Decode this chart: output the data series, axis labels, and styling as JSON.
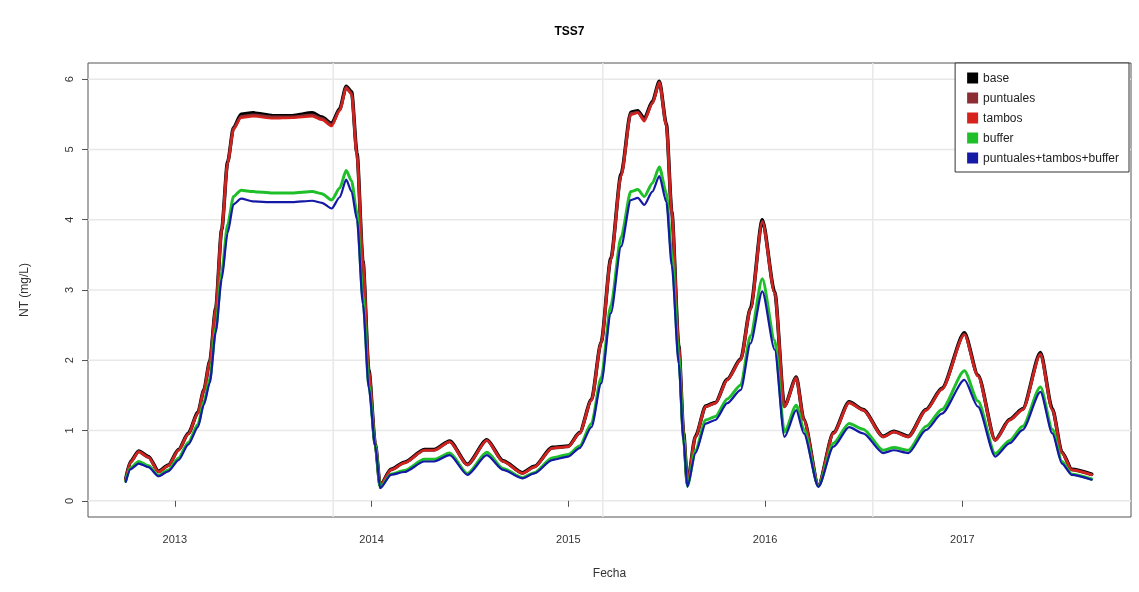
{
  "chart_data": {
    "type": "line",
    "title": "TSS7",
    "xlabel": "Fecha",
    "ylabel": "NT (mg/L)",
    "x": [
      "2012-10-02",
      "2012-10-11",
      "2012-10-26",
      "2012-11-13",
      "2012-12-02",
      "2012-12-20",
      "2013-01-08",
      "2013-01-26",
      "2013-02-13",
      "2013-02-24",
      "2013-03-07",
      "2013-03-18",
      "2013-03-29",
      "2013-04-09",
      "2013-04-20",
      "2013-05-04",
      "2013-05-26",
      "2013-07-02",
      "2013-08-07",
      "2013-09-13",
      "2013-10-01",
      "2013-10-19",
      "2013-11-03",
      "2013-11-15",
      "2013-11-25",
      "2013-12-05",
      "2013-12-16",
      "2013-12-27",
      "2014-01-08",
      "2014-01-17",
      "2014-02-06",
      "2014-03-03",
      "2014-04-09",
      "2014-04-27",
      "2014-05-26",
      "2014-06-28",
      "2014-08-03",
      "2014-09-02",
      "2014-10-08",
      "2014-10-30",
      "2014-12-02",
      "2015-01-01",
      "2015-01-22",
      "2015-02-13",
      "2015-03-03",
      "2015-03-21",
      "2015-04-09",
      "2015-04-27",
      "2015-05-10",
      "2015-05-22",
      "2015-06-06",
      "2015-06-19",
      "2015-07-02",
      "2015-07-12",
      "2015-07-25",
      "2015-08-03",
      "2015-08-10",
      "2015-08-25",
      "2015-09-13",
      "2015-10-01",
      "2015-10-23",
      "2015-11-17",
      "2015-12-05",
      "2015-12-27",
      "2016-01-19",
      "2016-02-06",
      "2016-02-28",
      "2016-03-13",
      "2016-04-09",
      "2016-05-07",
      "2016-06-05",
      "2016-07-01",
      "2016-08-07",
      "2016-08-27",
      "2016-09-23",
      "2016-10-26",
      "2016-11-24",
      "2017-01-05",
      "2017-01-30",
      "2017-03-03",
      "2017-03-30",
      "2017-04-23",
      "2017-05-26",
      "2017-06-17",
      "2017-07-05",
      "2017-07-23",
      "2017-08-29"
    ],
    "series": [
      {
        "name": "base",
        "color": "#000000",
        "values": [
          0.31,
          0.56,
          0.71,
          0.63,
          0.42,
          0.51,
          0.73,
          0.96,
          1.26,
          1.58,
          1.99,
          2.74,
          3.86,
          4.82,
          5.31,
          5.5,
          5.52,
          5.48,
          5.48,
          5.52,
          5.46,
          5.37,
          5.58,
          5.9,
          5.82,
          4.95,
          3.42,
          1.86,
          0.81,
          0.22,
          0.45,
          0.55,
          0.73,
          0.73,
          0.85,
          0.52,
          0.87,
          0.57,
          0.4,
          0.49,
          0.76,
          0.78,
          0.97,
          1.44,
          2.26,
          3.45,
          4.65,
          5.53,
          5.55,
          5.44,
          5.68,
          5.97,
          5.36,
          4.12,
          2.21,
          0.96,
          0.25,
          0.92,
          1.35,
          1.4,
          1.73,
          2.02,
          2.74,
          4.0,
          2.97,
          1.35,
          1.76,
          1.16,
          0.22,
          0.97,
          1.41,
          1.3,
          0.92,
          0.99,
          0.92,
          1.3,
          1.6,
          2.39,
          1.79,
          0.87,
          1.16,
          1.31,
          2.11,
          1.31,
          0.69,
          0.45,
          0.38
        ]
      },
      {
        "name": "puntuales",
        "color": "#8b2d32",
        "values": [
          0.3,
          0.55,
          0.7,
          0.62,
          0.41,
          0.5,
          0.72,
          0.95,
          1.25,
          1.57,
          1.98,
          2.73,
          3.85,
          4.81,
          5.3,
          5.47,
          5.49,
          5.46,
          5.46,
          5.49,
          5.44,
          5.35,
          5.56,
          5.88,
          5.8,
          4.92,
          3.41,
          1.85,
          0.8,
          0.22,
          0.44,
          0.54,
          0.72,
          0.72,
          0.84,
          0.51,
          0.86,
          0.56,
          0.39,
          0.48,
          0.75,
          0.77,
          0.96,
          1.43,
          2.25,
          3.44,
          4.63,
          5.51,
          5.53,
          5.42,
          5.66,
          5.96,
          5.34,
          4.11,
          2.2,
          0.95,
          0.25,
          0.91,
          1.34,
          1.39,
          1.72,
          2.01,
          2.73,
          3.98,
          2.96,
          1.34,
          1.75,
          1.15,
          0.22,
          0.96,
          1.4,
          1.29,
          0.91,
          0.98,
          0.91,
          1.29,
          1.59,
          2.37,
          1.78,
          0.86,
          1.15,
          1.3,
          2.09,
          1.3,
          0.68,
          0.44,
          0.37
        ]
      },
      {
        "name": "tambos",
        "color": "#d7211c",
        "values": [
          0.3,
          0.55,
          0.7,
          0.62,
          0.41,
          0.5,
          0.72,
          0.95,
          1.25,
          1.57,
          1.98,
          2.73,
          3.85,
          4.8,
          5.28,
          5.45,
          5.47,
          5.44,
          5.45,
          5.47,
          5.42,
          5.33,
          5.55,
          5.87,
          5.78,
          4.9,
          3.4,
          1.85,
          0.8,
          0.22,
          0.44,
          0.54,
          0.72,
          0.72,
          0.84,
          0.51,
          0.86,
          0.56,
          0.39,
          0.48,
          0.75,
          0.77,
          0.96,
          1.43,
          2.24,
          3.43,
          4.62,
          5.49,
          5.52,
          5.4,
          5.65,
          5.95,
          5.33,
          4.1,
          2.2,
          0.95,
          0.25,
          0.91,
          1.34,
          1.39,
          1.72,
          2.0,
          2.72,
          3.97,
          2.95,
          1.34,
          1.74,
          1.15,
          0.22,
          0.96,
          1.39,
          1.29,
          0.91,
          0.98,
          0.91,
          1.29,
          1.58,
          2.36,
          1.77,
          0.86,
          1.15,
          1.29,
          2.08,
          1.29,
          0.68,
          0.44,
          0.37
        ]
      },
      {
        "name": "buffer",
        "color": "#1fbf2a",
        "values": [
          0.28,
          0.47,
          0.56,
          0.5,
          0.36,
          0.44,
          0.61,
          0.83,
          1.09,
          1.41,
          1.73,
          2.46,
          3.25,
          3.93,
          4.33,
          4.42,
          4.4,
          4.38,
          4.38,
          4.4,
          4.37,
          4.28,
          4.45,
          4.7,
          4.55,
          4.1,
          2.9,
          1.65,
          0.79,
          0.19,
          0.38,
          0.43,
          0.59,
          0.59,
          0.68,
          0.39,
          0.69,
          0.46,
          0.33,
          0.4,
          0.61,
          0.66,
          0.78,
          1.1,
          1.75,
          2.78,
          3.75,
          4.4,
          4.43,
          4.33,
          4.52,
          4.75,
          4.38,
          3.5,
          2.05,
          0.88,
          0.21,
          0.72,
          1.15,
          1.2,
          1.45,
          1.65,
          2.35,
          3.16,
          2.28,
          0.98,
          1.36,
          1.02,
          0.21,
          0.82,
          1.1,
          1.02,
          0.72,
          0.76,
          0.72,
          1.06,
          1.3,
          1.85,
          1.42,
          0.67,
          0.86,
          1.06,
          1.62,
          1.02,
          0.56,
          0.38,
          0.31
        ]
      },
      {
        "name": "puntuales+tambos+buffer",
        "color": "#1419a6",
        "values": [
          0.27,
          0.45,
          0.53,
          0.48,
          0.35,
          0.42,
          0.58,
          0.8,
          1.05,
          1.37,
          1.68,
          2.4,
          3.15,
          3.81,
          4.22,
          4.3,
          4.26,
          4.25,
          4.25,
          4.27,
          4.24,
          4.16,
          4.32,
          4.57,
          4.4,
          4.0,
          2.8,
          1.6,
          0.78,
          0.18,
          0.37,
          0.41,
          0.56,
          0.56,
          0.65,
          0.37,
          0.65,
          0.44,
          0.32,
          0.39,
          0.58,
          0.63,
          0.75,
          1.05,
          1.67,
          2.67,
          3.62,
          4.28,
          4.31,
          4.21,
          4.4,
          4.62,
          4.25,
          3.35,
          1.95,
          0.85,
          0.2,
          0.68,
          1.1,
          1.15,
          1.39,
          1.58,
          2.24,
          2.98,
          2.15,
          0.91,
          1.29,
          0.96,
          0.2,
          0.77,
          1.05,
          0.96,
          0.68,
          0.72,
          0.68,
          1.01,
          1.24,
          1.72,
          1.34,
          0.63,
          0.82,
          1.01,
          1.55,
          0.96,
          0.53,
          0.37,
          0.3
        ]
      }
    ],
    "xlim": [
      "2012-07-24",
      "2017-11-10"
    ],
    "xticks": [
      "2013",
      "2014",
      "2015",
      "2016",
      "2017"
    ],
    "ylim": [
      -0.23,
      6.23
    ],
    "yticks": [
      0,
      1,
      2,
      3,
      4,
      5,
      6
    ],
    "ref_lines": [
      {
        "axis": "x",
        "value": "2013-10-22",
        "color": "#e8e8e8"
      },
      {
        "axis": "x",
        "value": "2015-03-06",
        "color": "#e8e8e8"
      },
      {
        "axis": "x",
        "value": "2016-07-19",
        "color": "#e8e8e8"
      }
    ],
    "grid": "y",
    "legend": "top right",
    "marker": "none"
  }
}
